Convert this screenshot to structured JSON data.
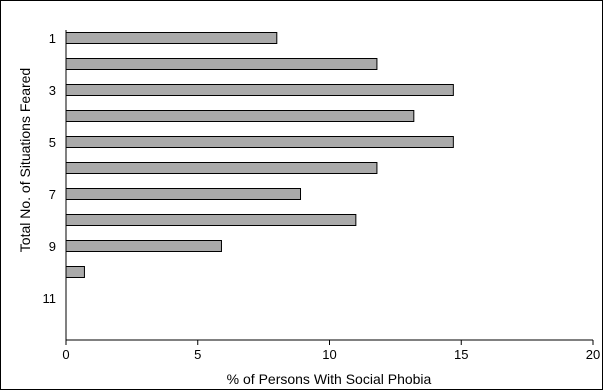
{
  "chart_data": {
    "type": "bar",
    "orientation": "horizontal",
    "categories": [
      "1",
      "2",
      "3",
      "4",
      "5",
      "6",
      "7",
      "8",
      "9",
      "10",
      "11"
    ],
    "category_tick_labels": [
      "1",
      "",
      "3",
      "",
      "5",
      "",
      "7",
      "",
      "9",
      "",
      "11"
    ],
    "values": [
      8.0,
      11.8,
      14.7,
      13.2,
      14.7,
      11.8,
      8.9,
      11.0,
      5.9,
      0.7,
      0
    ],
    "xlabel": "% of Persons With Social Phobia",
    "ylabel": "Total No. of Situations Feared",
    "xlim": [
      0,
      20
    ],
    "x_ticks": [
      0,
      5,
      10,
      15,
      20
    ],
    "grid": false,
    "bar_color": "#aaaaaa",
    "bar_edge_color": "#000000"
  }
}
